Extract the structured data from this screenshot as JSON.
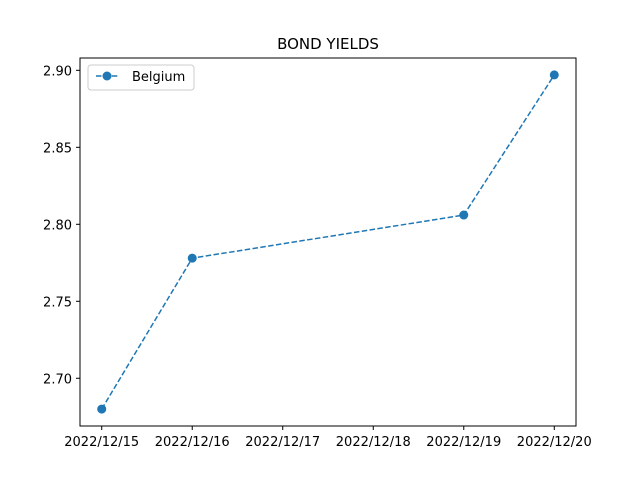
{
  "chart_data": {
    "type": "line",
    "title": "BOND YIELDS",
    "xlabel": "",
    "ylabel": "",
    "x": [
      "2022/12/15",
      "2022/12/16",
      "2022/12/19",
      "2022/12/20"
    ],
    "x_ticks": [
      "2022/12/15",
      "2022/12/16",
      "2022/12/17",
      "2022/12/18",
      "2022/12/19",
      "2022/12/20"
    ],
    "y_ticks": [
      "2.70",
      "2.75",
      "2.80",
      "2.85",
      "2.90"
    ],
    "y_tick_values": [
      2.7,
      2.75,
      2.8,
      2.85,
      2.9
    ],
    "xlim": [
      "2022/12/14.76",
      "2022/12/20.24"
    ],
    "ylim": [
      2.669,
      2.908
    ],
    "grid": false,
    "legend_position": "top-left",
    "series": [
      {
        "name": "Belgium",
        "values": [
          2.68,
          2.778,
          2.806,
          2.897
        ],
        "color": "#1f77b4",
        "line_style": "dashed",
        "marker": "circle"
      }
    ]
  }
}
